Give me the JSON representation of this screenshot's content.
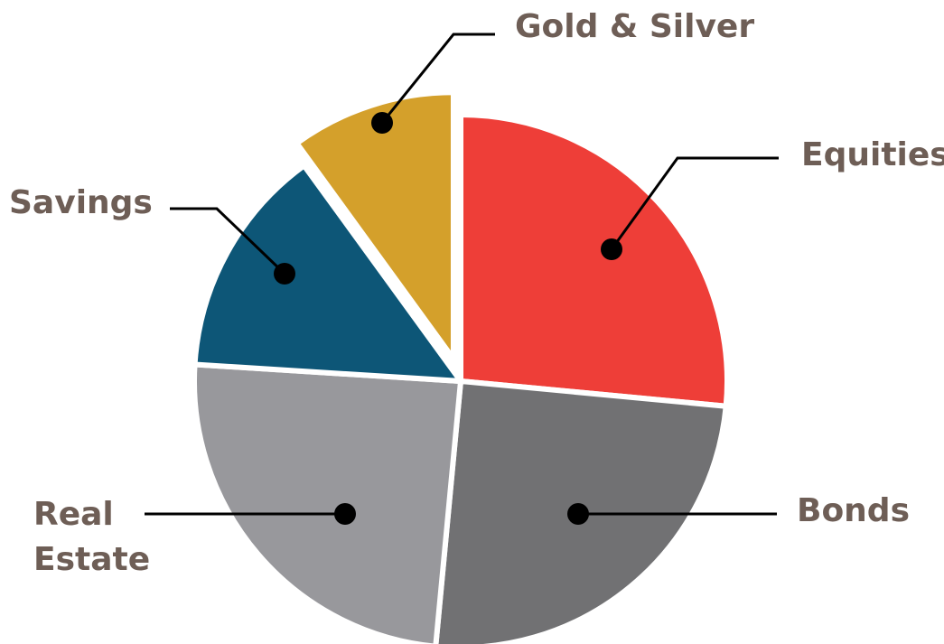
{
  "chart_data": {
    "type": "pie",
    "title": "",
    "legend": "none",
    "label_color": "#6e5e56",
    "slices": [
      {
        "label": [
          "Equities"
        ],
        "value": 26.5,
        "color": "#ee3e38",
        "exploded": false
      },
      {
        "label": [
          "Bonds"
        ],
        "value": 25,
        "color": "#717173",
        "exploded": false
      },
      {
        "label": [
          "Real",
          "Estate"
        ],
        "value": 24.5,
        "color": "#98989c",
        "exploded": false
      },
      {
        "label": [
          "Savings"
        ],
        "value": 14,
        "color": "#0d5677",
        "exploded": false
      },
      {
        "label": [
          "Gold & Silver"
        ],
        "value": 10,
        "color": "#d4a02b",
        "exploded": true
      }
    ]
  }
}
